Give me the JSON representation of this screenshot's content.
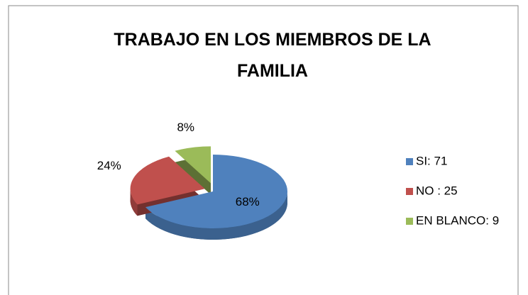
{
  "chart_data": {
    "type": "pie3d",
    "title": "TRABAJO EN LOS MIEMBROS DE LA FAMILIA",
    "categories": [
      "SI: 71",
      "NO : 25",
      "EN BLANCO: 9"
    ],
    "values": [
      68,
      24,
      8
    ],
    "value_labels": [
      "68%",
      "24%",
      "8%"
    ],
    "colors": [
      "#4f81bd",
      "#c0504d",
      "#9bbb59"
    ],
    "legend": "right"
  }
}
